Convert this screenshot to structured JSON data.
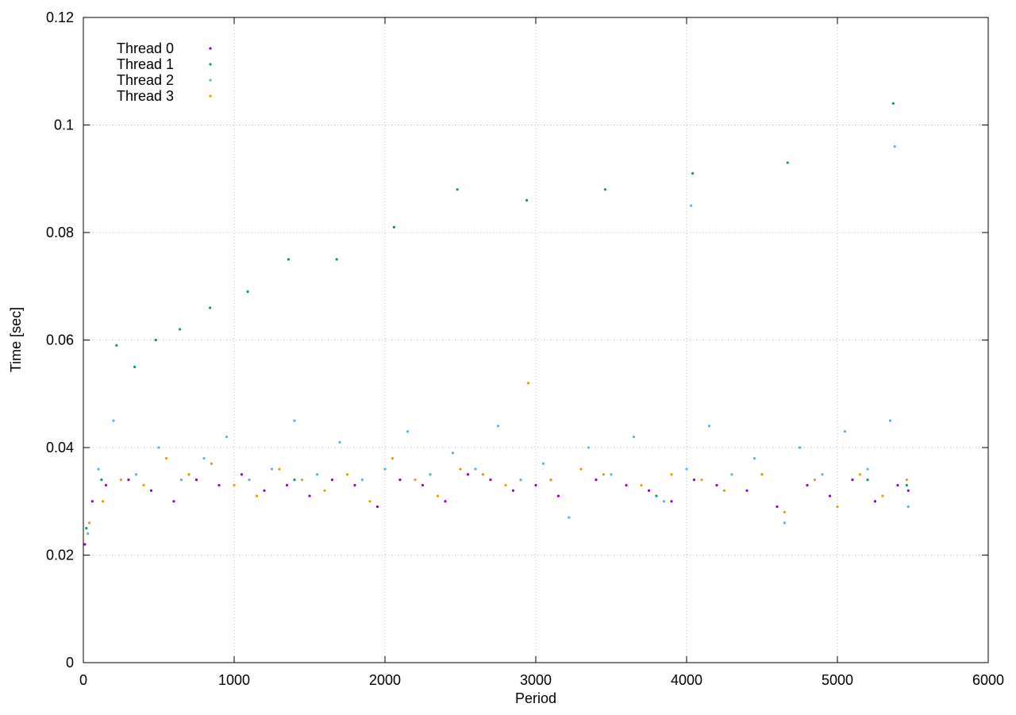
{
  "chart_data": {
    "type": "scatter",
    "x_label": "Period",
    "y_label": "Time [sec]",
    "xlim": [
      0,
      6000
    ],
    "xticks": [
      0,
      1000,
      2000,
      3000,
      4000,
      5000,
      6000
    ],
    "ylim": [
      0,
      0.12
    ],
    "yticks": [
      0,
      0.02,
      0.04,
      0.06,
      0.08,
      0.1,
      0.12
    ],
    "grid": true,
    "legend": "top-left",
    "series": [
      {
        "name": "Thread 0",
        "color": "#9400d3",
        "x": [
          10,
          60,
          150,
          300,
          450,
          600,
          750,
          900,
          1050,
          1200,
          1350,
          1500,
          1650,
          1800,
          1950,
          2100,
          2250,
          2400,
          2550,
          2700,
          2850,
          3000,
          3150,
          3400,
          3600,
          3750,
          3900,
          4050,
          4200,
          4400,
          4600,
          4800,
          4950,
          5100,
          5250,
          5400,
          5470
        ],
        "values": [
          0.022,
          0.03,
          0.033,
          0.034,
          0.032,
          0.03,
          0.034,
          0.033,
          0.035,
          0.032,
          0.033,
          0.031,
          0.034,
          0.033,
          0.029,
          0.034,
          0.033,
          0.03,
          0.035,
          0.034,
          0.032,
          0.033,
          0.031,
          0.034,
          0.033,
          0.032,
          0.03,
          0.034,
          0.033,
          0.032,
          0.029,
          0.033,
          0.031,
          0.034,
          0.03,
          0.033,
          0.032
        ]
      },
      {
        "name": "Thread 1",
        "color": "#009e73",
        "x": [
          20,
          120,
          220,
          340,
          480,
          640,
          840,
          1090,
          1360,
          1680,
          2060,
          2480,
          2940,
          3460,
          4040,
          4670,
          5370,
          700,
          1400,
          2300,
          3100,
          3800,
          4500,
          5200,
          5460
        ],
        "values": [
          0.025,
          0.034,
          0.059,
          0.055,
          0.06,
          0.062,
          0.066,
          0.069,
          0.075,
          0.075,
          0.081,
          0.088,
          0.086,
          0.088,
          0.091,
          0.093,
          0.104,
          0.035,
          0.034,
          0.035,
          0.034,
          0.031,
          0.035,
          0.034,
          0.033
        ]
      },
      {
        "name": "Thread 2",
        "color": "#56b4e9",
        "x": [
          30,
          100,
          200,
          350,
          500,
          650,
          800,
          950,
          1100,
          1250,
          1400,
          1550,
          1700,
          1850,
          2000,
          2150,
          2300,
          2450,
          2600,
          2750,
          2900,
          3050,
          3220,
          3350,
          3500,
          3650,
          3850,
          4000,
          4150,
          4300,
          4450,
          4650,
          4750,
          4900,
          5050,
          5200,
          5350,
          5470,
          5380,
          4030
        ],
        "values": [
          0.024,
          0.036,
          0.045,
          0.035,
          0.04,
          0.034,
          0.038,
          0.042,
          0.034,
          0.036,
          0.045,
          0.035,
          0.041,
          0.034,
          0.036,
          0.043,
          0.035,
          0.039,
          0.036,
          0.044,
          0.034,
          0.037,
          0.027,
          0.04,
          0.035,
          0.042,
          0.03,
          0.036,
          0.044,
          0.035,
          0.038,
          0.026,
          0.04,
          0.035,
          0.043,
          0.036,
          0.045,
          0.029,
          0.096,
          0.085
        ]
      },
      {
        "name": "Thread 3",
        "color": "#e69f00",
        "x": [
          40,
          130,
          250,
          400,
          550,
          700,
          850,
          1000,
          1150,
          1300,
          1450,
          1600,
          1750,
          1900,
          2050,
          2200,
          2350,
          2500,
          2650,
          2800,
          2950,
          3100,
          3300,
          3450,
          3700,
          3900,
          4100,
          4250,
          4500,
          4650,
          4850,
          5000,
          5150,
          5300,
          5460
        ],
        "values": [
          0.026,
          0.03,
          0.034,
          0.033,
          0.038,
          0.035,
          0.037,
          0.033,
          0.031,
          0.036,
          0.034,
          0.032,
          0.035,
          0.03,
          0.038,
          0.034,
          0.031,
          0.036,
          0.035,
          0.033,
          0.052,
          0.034,
          0.036,
          0.035,
          0.033,
          0.035,
          0.034,
          0.032,
          0.035,
          0.028,
          0.034,
          0.029,
          0.035,
          0.031,
          0.034
        ]
      }
    ]
  }
}
